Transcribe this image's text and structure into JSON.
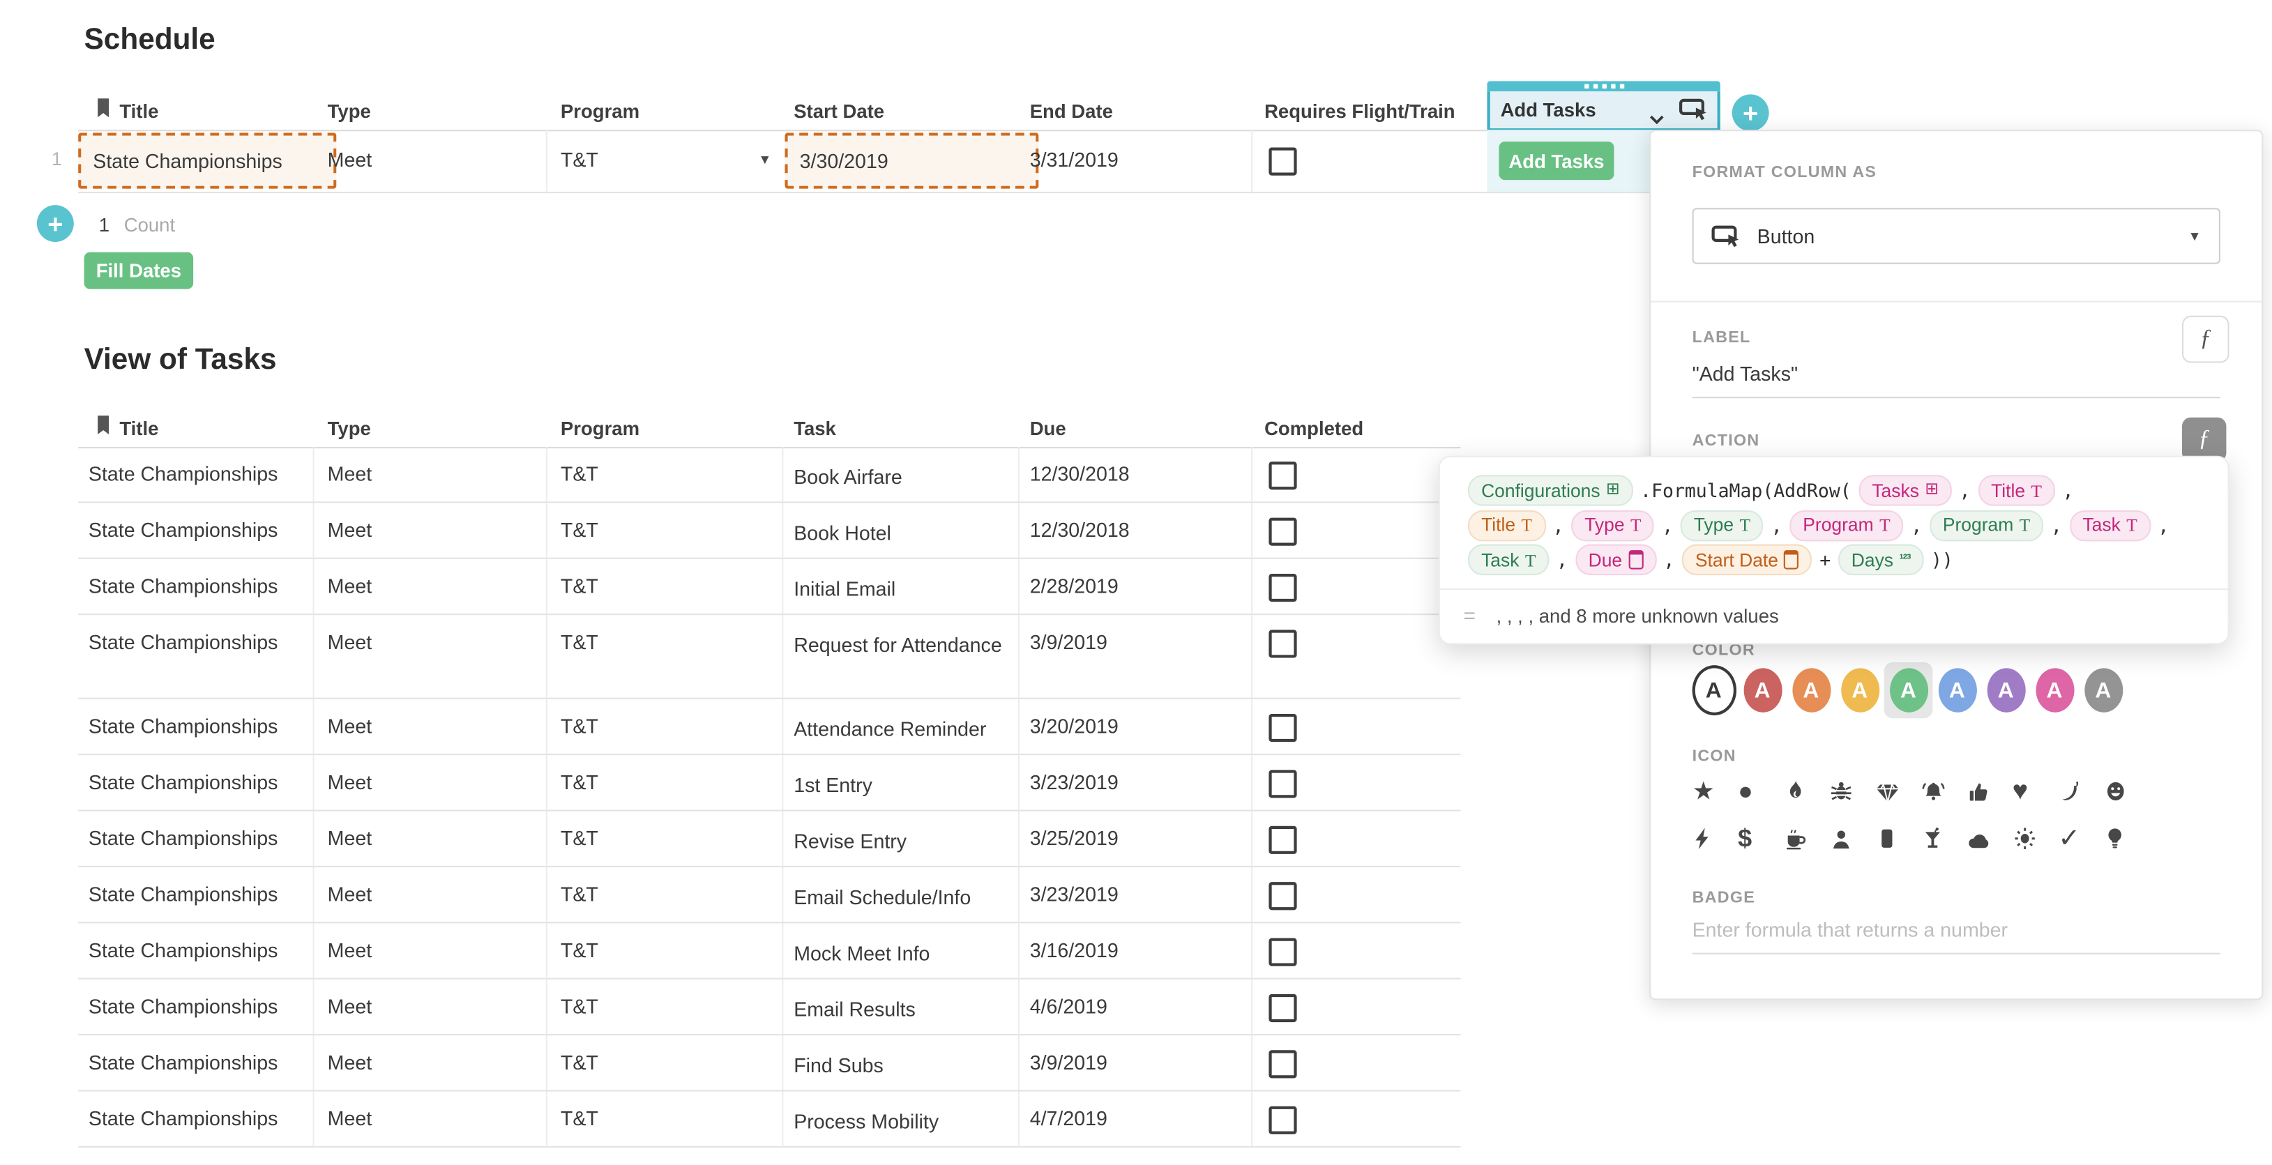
{
  "schedule": {
    "title": "Schedule",
    "columns": [
      "Title",
      "Type",
      "Program",
      "Start Date",
      "End Date",
      "Requires Flight/Train"
    ],
    "button_column_name": "Add Tasks",
    "row": {
      "num": "1",
      "title": "State Championships",
      "type": "Meet",
      "program": "T&T",
      "start_date": "3/30/2019",
      "end_date": "3/31/2019",
      "requires_flight_train": false,
      "button_label": "Add Tasks"
    },
    "count_value": "1",
    "count_label": "Count",
    "fill_dates_label": "Fill Dates"
  },
  "tasks": {
    "title": "View of Tasks",
    "columns": [
      "Title",
      "Type",
      "Program",
      "Task",
      "Due",
      "Completed"
    ],
    "rows": [
      {
        "title": "State Championships",
        "type": "Meet",
        "program": "T&T",
        "task": "Book Airfare",
        "due": "12/30/2018",
        "completed": false
      },
      {
        "title": "State Championships",
        "type": "Meet",
        "program": "T&T",
        "task": "Book Hotel",
        "due": "12/30/2018",
        "completed": false
      },
      {
        "title": "State Championships",
        "type": "Meet",
        "program": "T&T",
        "task": "Initial Email",
        "due": "2/28/2019",
        "completed": false
      },
      {
        "title": "State Championships",
        "type": "Meet",
        "program": "T&T",
        "task": "Request for Attendance",
        "due": "3/9/2019",
        "completed": false
      },
      {
        "title": "State Championships",
        "type": "Meet",
        "program": "T&T",
        "task": "Attendance Reminder",
        "due": "3/20/2019",
        "completed": false
      },
      {
        "title": "State Championships",
        "type": "Meet",
        "program": "T&T",
        "task": "1st Entry",
        "due": "3/23/2019",
        "completed": false
      },
      {
        "title": "State Championships",
        "type": "Meet",
        "program": "T&T",
        "task": "Revise Entry",
        "due": "3/25/2019",
        "completed": false
      },
      {
        "title": "State Championships",
        "type": "Meet",
        "program": "T&T",
        "task": "Email Schedule/Info",
        "due": "3/23/2019",
        "completed": false
      },
      {
        "title": "State Championships",
        "type": "Meet",
        "program": "T&T",
        "task": "Mock Meet Info",
        "due": "3/16/2019",
        "completed": false
      },
      {
        "title": "State Championships",
        "type": "Meet",
        "program": "T&T",
        "task": "Email Results",
        "due": "4/6/2019",
        "completed": false
      },
      {
        "title": "State Championships",
        "type": "Meet",
        "program": "T&T",
        "task": "Find Subs",
        "due": "3/9/2019",
        "completed": false
      },
      {
        "title": "State Championships",
        "type": "Meet",
        "program": "T&T",
        "task": "Process Mobility",
        "due": "4/7/2019",
        "completed": false
      }
    ]
  },
  "panel": {
    "format_column_as": "FORMAT COLUMN AS",
    "column_type": "Button",
    "label_heading": "LABEL",
    "label_value": "\"Add Tasks\"",
    "action_heading": "ACTION",
    "formula_icon": "ƒ",
    "color_heading": "COLOR",
    "colors": [
      {
        "name": "none",
        "hex": "#ffffff",
        "selected": false
      },
      {
        "name": "red",
        "hex": "#cb6360",
        "selected": false
      },
      {
        "name": "orange",
        "hex": "#e68e55",
        "selected": false
      },
      {
        "name": "yellow",
        "hex": "#efba50",
        "selected": false
      },
      {
        "name": "green",
        "hex": "#6ec287",
        "selected": true
      },
      {
        "name": "blue",
        "hex": "#7ea7e3",
        "selected": false
      },
      {
        "name": "purple",
        "hex": "#a07cc6",
        "selected": false
      },
      {
        "name": "pink",
        "hex": "#de66a7",
        "selected": false
      },
      {
        "name": "gray",
        "hex": "#949494",
        "selected": false
      }
    ],
    "swatch_letter": "A",
    "icon_heading": "ICON",
    "icons_row1": [
      "star",
      "circle",
      "flame",
      "bug",
      "gem",
      "bell",
      "thumbs-up",
      "heart",
      "pepper",
      "smiley"
    ],
    "icons_row2": [
      "bolt",
      "dollar",
      "coffee",
      "person",
      "card",
      "cocktail",
      "cloud",
      "sun",
      "check",
      "bulb"
    ],
    "badge_heading": "BADGE",
    "badge_placeholder": "Enter formula that returns a number"
  },
  "formula_popup": {
    "lines": [
      [
        {
          "t": "chip",
          "c": "green",
          "icon": "table",
          "label": "Configurations"
        },
        {
          "t": "code",
          "label": ".FormulaMap(AddRow("
        },
        {
          "t": "chip",
          "c": "pink",
          "icon": "table",
          "label": "Tasks"
        },
        {
          "t": "code",
          "label": ","
        },
        {
          "t": "chip",
          "c": "pink",
          "icon": "text",
          "label": "Title"
        },
        {
          "t": "code",
          "label": ","
        }
      ],
      [
        {
          "t": "chip",
          "c": "orange",
          "icon": "text",
          "label": "Title"
        },
        {
          "t": "code",
          "label": ","
        },
        {
          "t": "chip",
          "c": "pink",
          "icon": "text",
          "label": "Type"
        },
        {
          "t": "code",
          "label": ","
        },
        {
          "t": "chip",
          "c": "green",
          "icon": "text",
          "label": "Type"
        },
        {
          "t": "code",
          "label": ","
        },
        {
          "t": "chip",
          "c": "pink",
          "icon": "text",
          "label": "Program"
        },
        {
          "t": "code",
          "label": ","
        },
        {
          "t": "chip",
          "c": "green",
          "icon": "text",
          "label": "Program"
        },
        {
          "t": "code",
          "label": ","
        },
        {
          "t": "chip",
          "c": "pink",
          "icon": "text",
          "label": "Task"
        },
        {
          "t": "code",
          "label": ","
        }
      ],
      [
        {
          "t": "chip",
          "c": "green",
          "icon": "text",
          "label": "Task"
        },
        {
          "t": "code",
          "label": ","
        },
        {
          "t": "chip",
          "c": "pink",
          "icon": "date",
          "label": "Due"
        },
        {
          "t": "code",
          "label": ","
        },
        {
          "t": "chip",
          "c": "orange",
          "icon": "date",
          "label": "Start Date"
        },
        {
          "t": "code",
          "label": "+"
        },
        {
          "t": "chip",
          "c": "green",
          "icon": "number",
          "label": "Days"
        },
        {
          "t": "code",
          "label": "))"
        }
      ]
    ],
    "result_prefix": "=",
    "result_text": ", , , , and 8 more unknown values"
  },
  "accents": {
    "teal": "#52bfcf",
    "teal_border": "#3cb0c4",
    "teal_cell": "#e7f4f8",
    "green_button": "#68c183",
    "orange_dashed": "#cf6b1e"
  }
}
